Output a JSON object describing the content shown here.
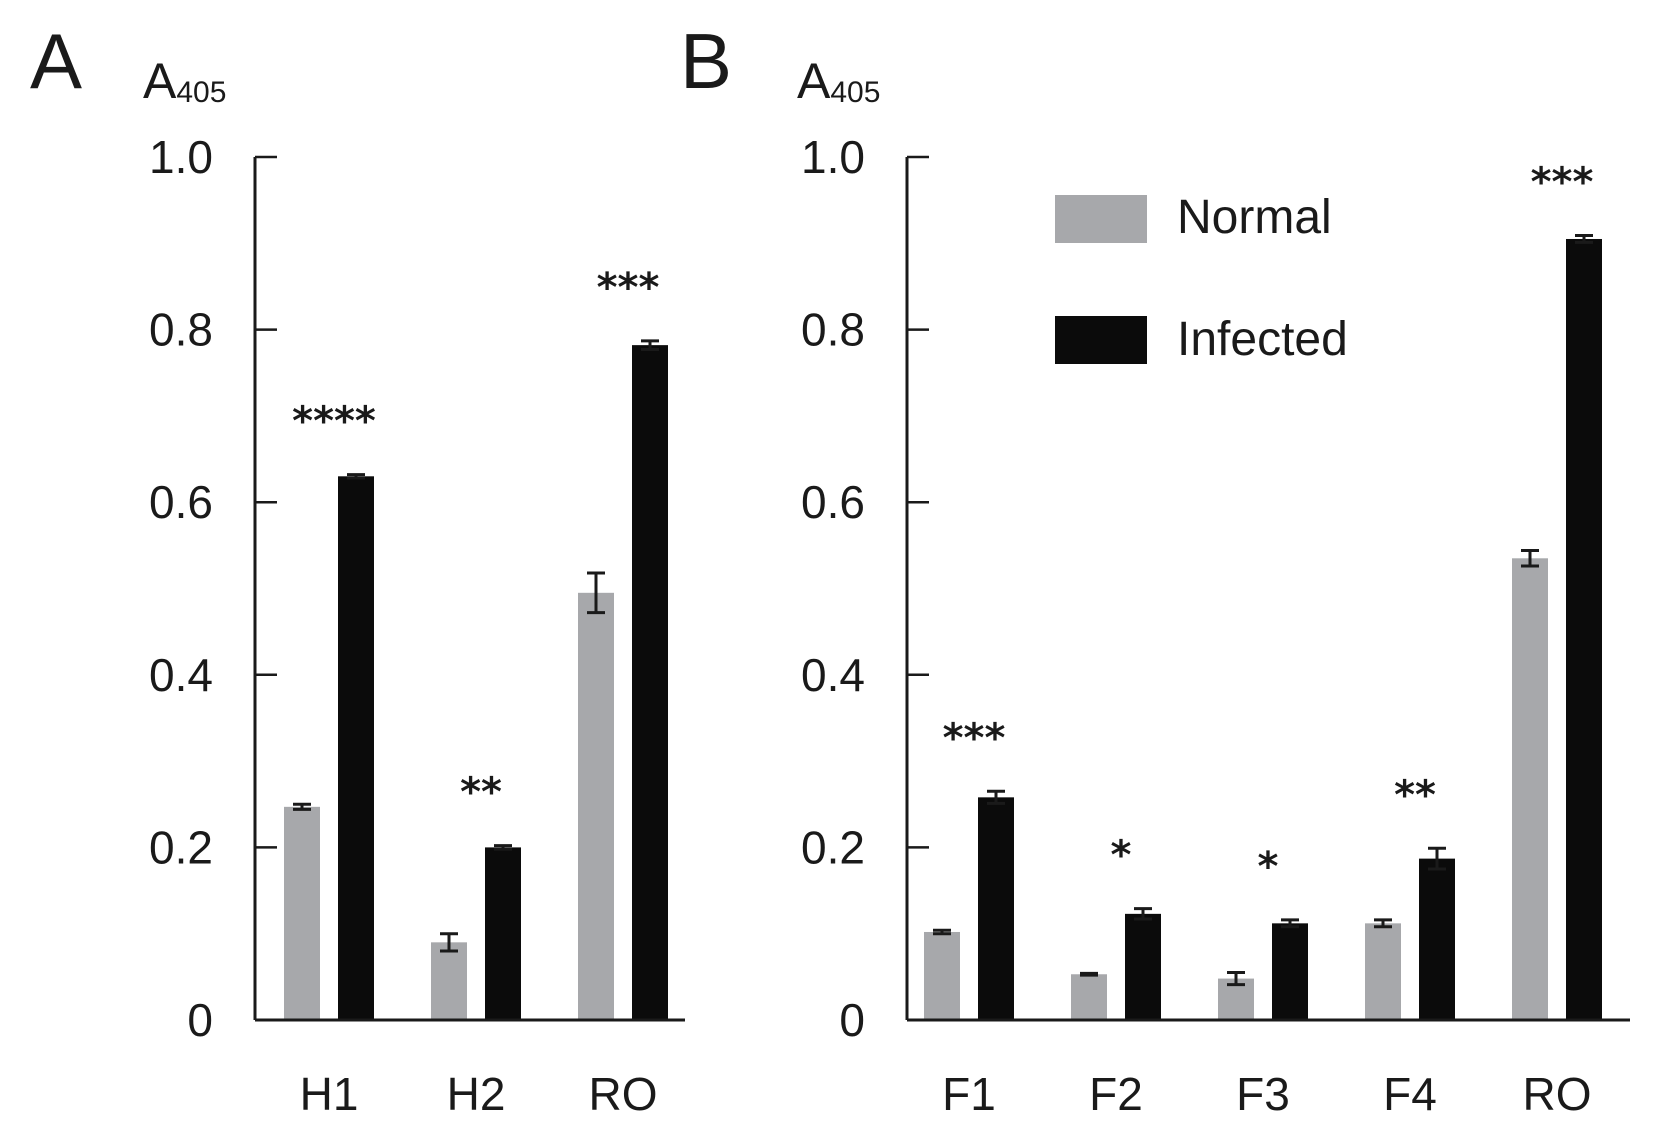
{
  "legend": {
    "normal": "Normal",
    "infected": "Infected"
  },
  "colors": {
    "normal": "#a7a8ab",
    "infected": "#0b0b0b",
    "axis": "#1a1a1a"
  },
  "chart_data": [
    {
      "type": "bar",
      "panel": "A",
      "ylabel": "A",
      "ylabel_sub": "405",
      "ylim": [
        0,
        1.0
      ],
      "yticks": [
        "0",
        "0.2",
        "0.4",
        "0.6",
        "0.8",
        "1.0"
      ],
      "categories": [
        "H1",
        "H2",
        "RO"
      ],
      "series": [
        {
          "name": "Normal",
          "values": [
            0.247,
            0.09,
            0.495
          ],
          "errors": [
            0.003,
            0.01,
            0.023
          ]
        },
        {
          "name": "Infected",
          "values": [
            0.63,
            0.2,
            0.782
          ],
          "errors": [
            0.002,
            0.002,
            0.005
          ]
        }
      ],
      "significance": [
        "****",
        "**",
        "***"
      ]
    },
    {
      "type": "bar",
      "panel": "B",
      "ylabel": "A",
      "ylabel_sub": "405",
      "ylim": [
        0,
        1.0
      ],
      "yticks": [
        "0",
        "0.2",
        "0.4",
        "0.6",
        "0.8",
        "1.0"
      ],
      "categories": [
        "F1",
        "F2",
        "F3",
        "F4",
        "RO"
      ],
      "series": [
        {
          "name": "Normal",
          "values": [
            0.102,
            0.053,
            0.048,
            0.112,
            0.535
          ],
          "errors": [
            0.002,
            0.001,
            0.007,
            0.004,
            0.009
          ]
        },
        {
          "name": "Infected",
          "values": [
            0.258,
            0.123,
            0.112,
            0.187,
            0.905
          ],
          "errors": [
            0.007,
            0.006,
            0.004,
            0.012,
            0.004
          ]
        }
      ],
      "significance": [
        "***",
        "*",
        "*",
        "**",
        "***"
      ],
      "legend_position": "top-right"
    }
  ]
}
